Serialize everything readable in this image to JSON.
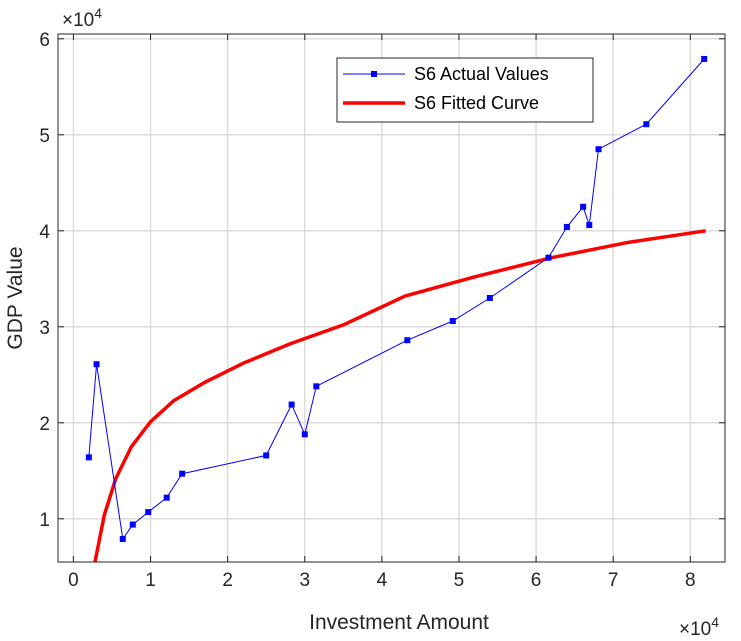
{
  "chart_data": {
    "type": "line",
    "title": "",
    "xlabel": "Investment Amount",
    "ylabel": "GDP Value",
    "x_exponent": "×10",
    "x_exponent_power": "4",
    "y_exponent": "×10",
    "y_exponent_power": "4",
    "xlim": [
      -0.2,
      8.45
    ],
    "ylim": [
      0.55,
      6.05
    ],
    "xticks": [
      0,
      1,
      2,
      3,
      4,
      5,
      6,
      7,
      8
    ],
    "yticks": [
      1,
      2,
      3,
      4,
      5,
      6
    ],
    "xtick_labels": [
      "0",
      "1",
      "2",
      "3",
      "4",
      "5",
      "6",
      "7",
      "8"
    ],
    "ytick_labels": [
      "1",
      "2",
      "3",
      "4",
      "5",
      "6"
    ],
    "grid": true,
    "legend_position": "top-right",
    "series": [
      {
        "name": "S6 Actual Values",
        "color": "#0000ff",
        "marker": "square",
        "x": [
          0.2,
          0.3,
          0.64,
          0.77,
          0.97,
          1.21,
          1.41,
          2.5,
          2.83,
          3.0,
          3.15,
          4.33,
          4.92,
          5.4,
          6.16,
          6.4,
          6.61,
          6.69,
          6.81,
          7.43,
          8.18
        ],
        "y": [
          1.64,
          2.61,
          0.79,
          0.94,
          1.07,
          1.22,
          1.47,
          1.66,
          2.19,
          1.88,
          2.38,
          2.86,
          3.06,
          3.3,
          3.72,
          4.04,
          4.25,
          4.06,
          4.85,
          5.11,
          5.79
        ]
      },
      {
        "name": "S6 Fitted Curve",
        "color": "#ff0000",
        "marker": "none",
        "x": [
          0.28,
          0.4,
          0.55,
          0.75,
          1.0,
          1.3,
          1.7,
          2.2,
          2.8,
          3.5,
          4.3,
          5.2,
          6.2,
          7.2,
          8.2
        ],
        "y": [
          0.55,
          1.04,
          1.42,
          1.75,
          2.01,
          2.23,
          2.42,
          2.62,
          2.82,
          3.02,
          3.32,
          3.52,
          3.72,
          3.88,
          4.0
        ]
      }
    ]
  }
}
